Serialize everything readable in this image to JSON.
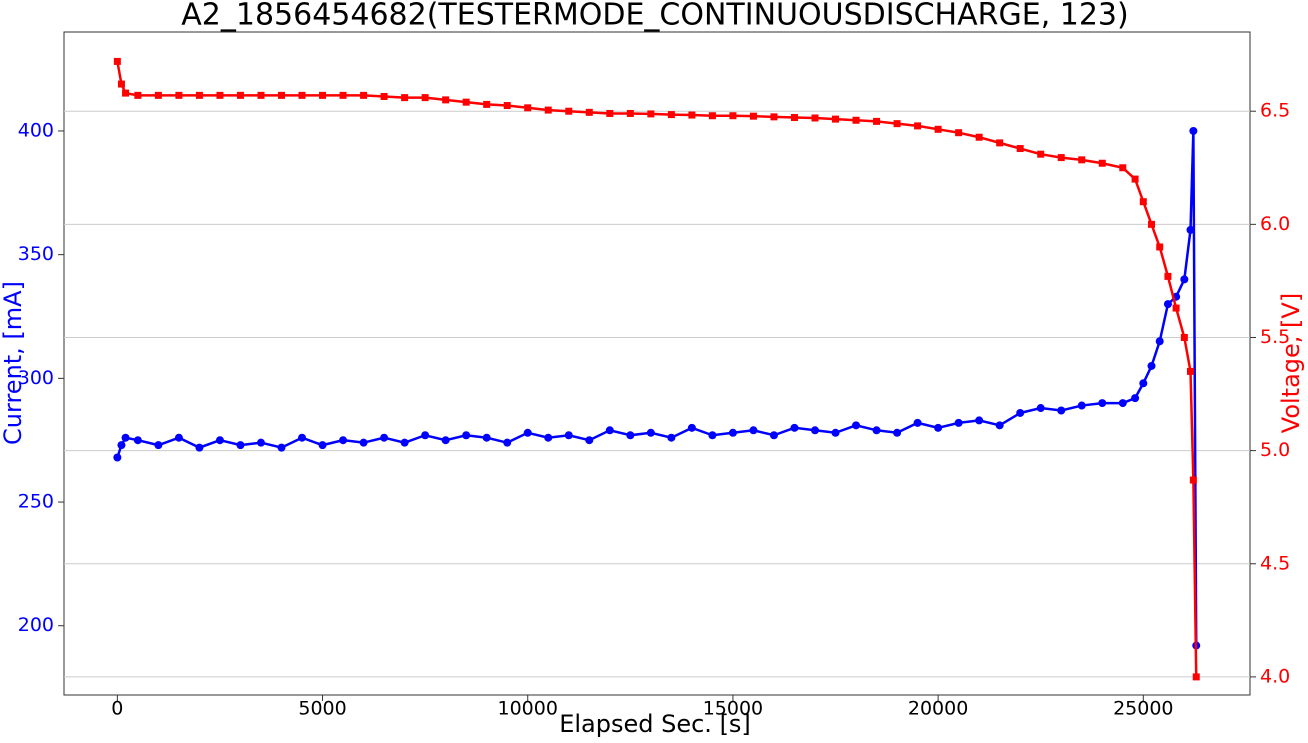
{
  "chart_data": {
    "type": "line",
    "title": "A2_1856454682(TESTERMODE_CONTINUOUSDISCHARGE, 123)",
    "xlabel": "Elapsed Sec. [s]",
    "ylabel": "Current, [mA]",
    "y2label": "Voltage, [V]",
    "x": [
      0,
      100,
      200,
      500,
      1000,
      1500,
      2000,
      2500,
      3000,
      3500,
      4000,
      4500,
      5000,
      5500,
      6000,
      6500,
      7000,
      7500,
      8000,
      8500,
      9000,
      9500,
      10000,
      10500,
      11000,
      11500,
      12000,
      12500,
      13000,
      13500,
      14000,
      14500,
      15000,
      15500,
      16000,
      16500,
      17000,
      17500,
      18000,
      18500,
      19000,
      19500,
      20000,
      20500,
      21000,
      21500,
      22000,
      22500,
      23000,
      23500,
      24000,
      24500,
      24800,
      25000,
      25200,
      25400,
      25600,
      25800,
      26000,
      26150,
      26220,
      26290
    ],
    "series": [
      {
        "name": "Current",
        "color": "#0000ff",
        "marker": "circle",
        "values": [
          268,
          273,
          276,
          275,
          273,
          276,
          272,
          275,
          273,
          274,
          272,
          276,
          273,
          275,
          274,
          276,
          274,
          277,
          275,
          277,
          276,
          274,
          278,
          276,
          277,
          275,
          279,
          277,
          278,
          276,
          280,
          277,
          278,
          279,
          277,
          280,
          279,
          278,
          281,
          279,
          278,
          282,
          280,
          282,
          283,
          281,
          286,
          288,
          287,
          289,
          290,
          290,
          292,
          298,
          305,
          315,
          330,
          333,
          340,
          360,
          400,
          192
        ]
      },
      {
        "name": "Voltage",
        "color": "#ff0000",
        "marker": "square",
        "axis": "y2",
        "values": [
          6.72,
          6.62,
          6.58,
          6.57,
          6.57,
          6.57,
          6.57,
          6.57,
          6.57,
          6.57,
          6.57,
          6.57,
          6.57,
          6.57,
          6.57,
          6.565,
          6.56,
          6.56,
          6.55,
          6.54,
          6.53,
          6.525,
          6.515,
          6.505,
          6.5,
          6.495,
          6.49,
          6.49,
          6.488,
          6.485,
          6.483,
          6.48,
          6.48,
          6.478,
          6.475,
          6.472,
          6.47,
          6.465,
          6.46,
          6.455,
          6.445,
          6.435,
          6.42,
          6.405,
          6.385,
          6.36,
          6.335,
          6.31,
          6.295,
          6.285,
          6.27,
          6.25,
          6.2,
          6.1,
          6.0,
          5.9,
          5.77,
          5.63,
          5.5,
          5.35,
          4.87,
          4.0
        ]
      }
    ],
    "xlim": [
      -1300,
      27600
    ],
    "xticks": [
      0,
      5000,
      10000,
      15000,
      20000,
      25000
    ],
    "ylim": [
      172,
      440
    ],
    "yticks": [
      200,
      250,
      300,
      350,
      400
    ],
    "y2lim": [
      3.92,
      6.85
    ],
    "y2ticks": [
      {
        "value": 4.0,
        "label": "4.0"
      },
      4.5,
      {
        "value": 5.0,
        "label": "5.0"
      },
      5.5,
      {
        "value": 6.0,
        "label": "6.0"
      },
      6.5
    ],
    "grid": true
  }
}
